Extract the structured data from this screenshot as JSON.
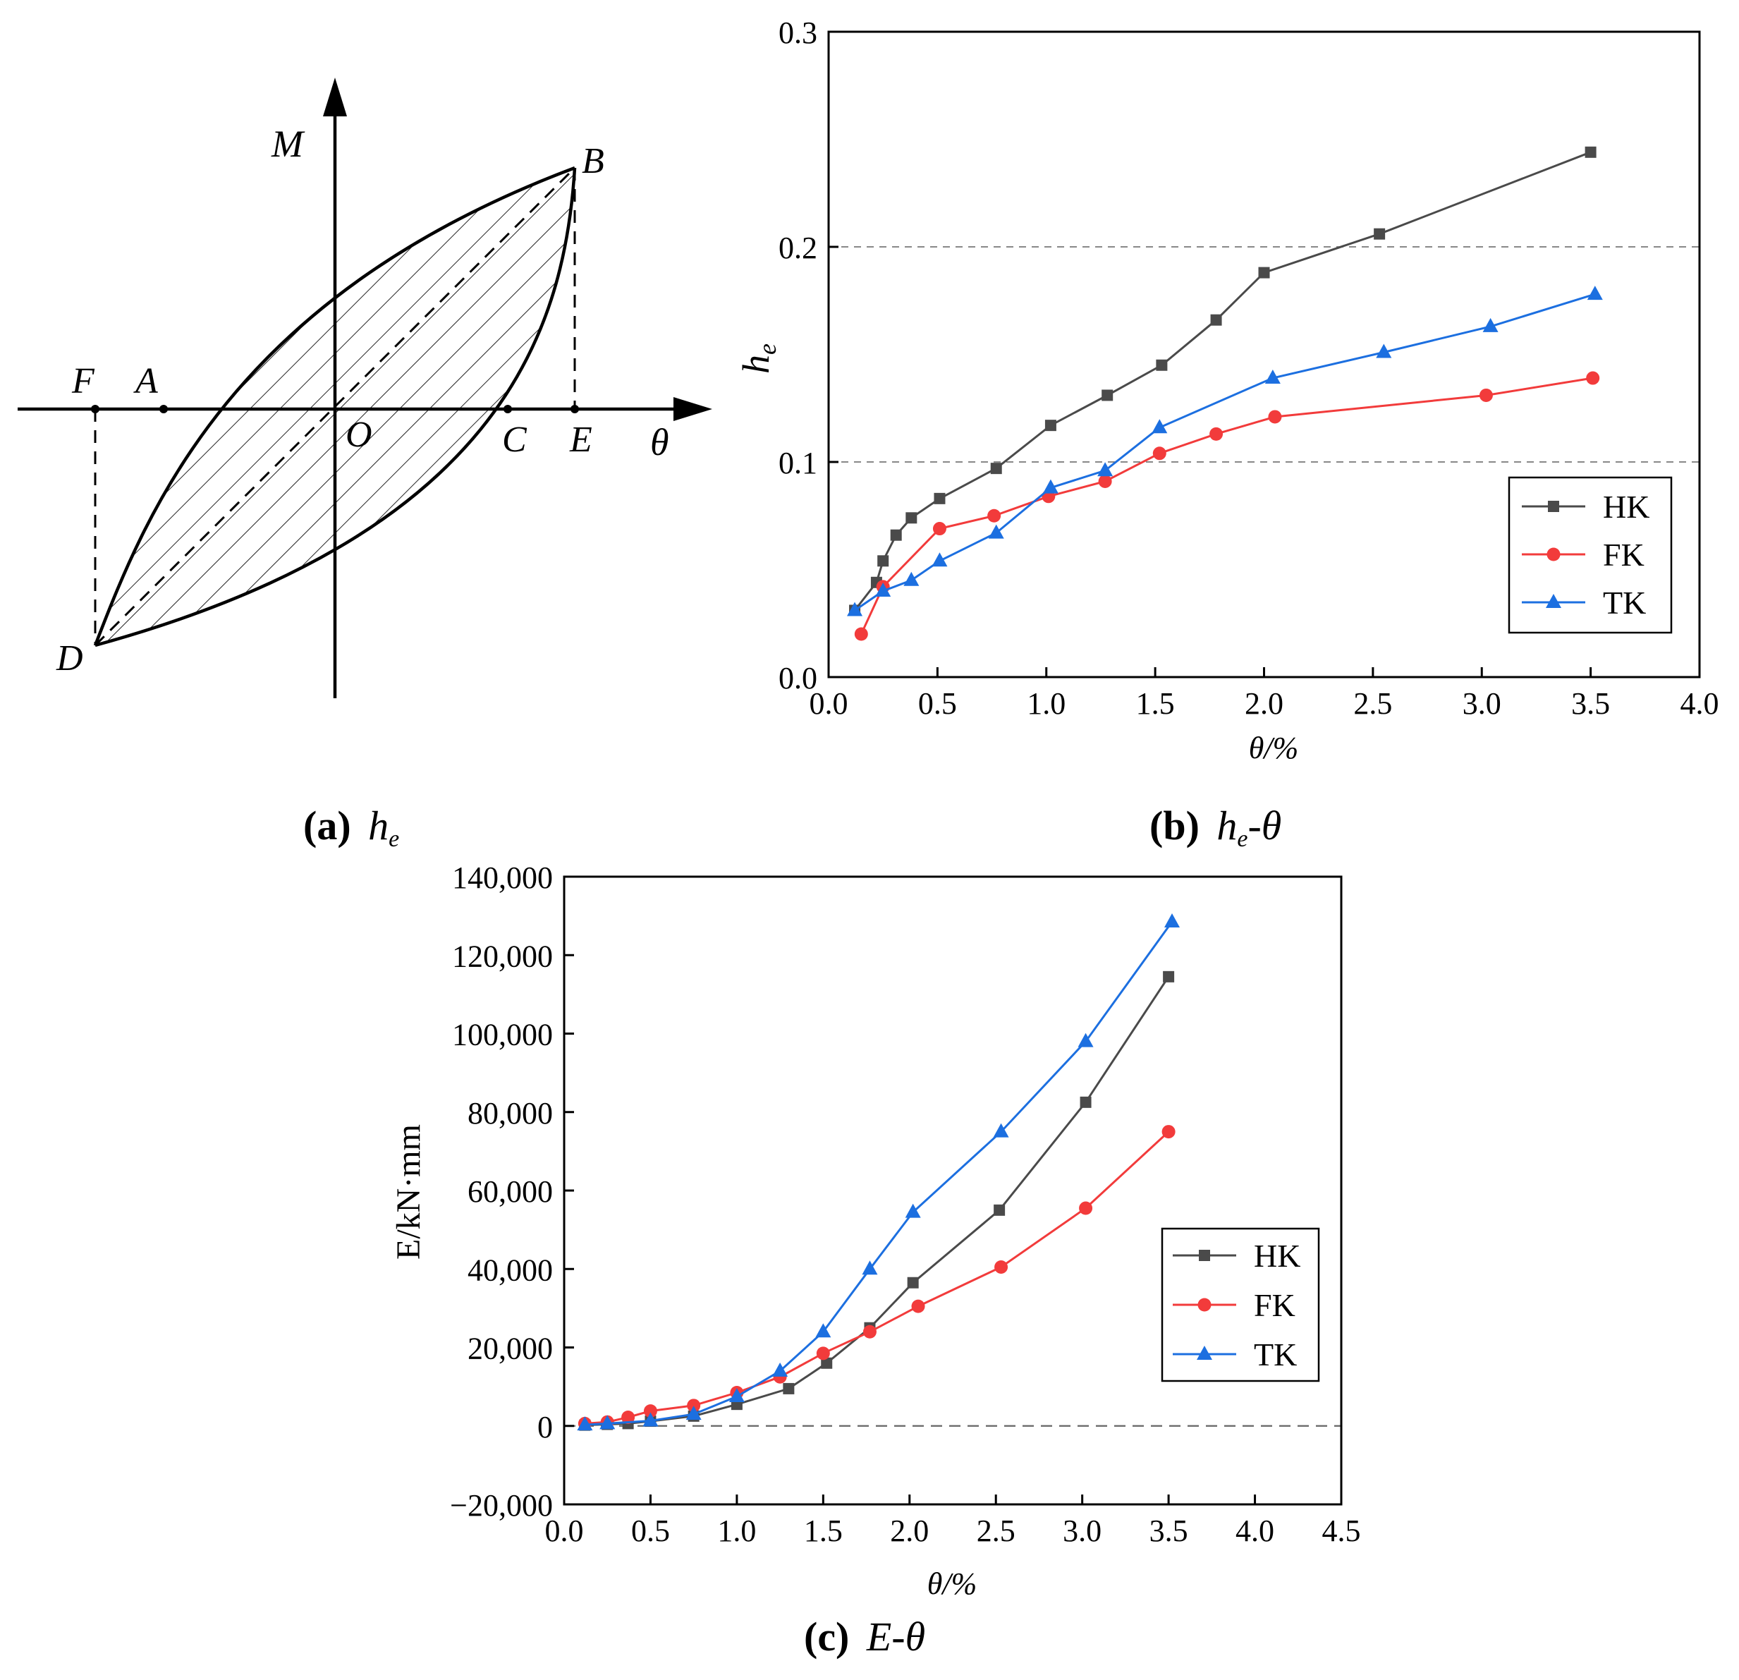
{
  "panel_a": {
    "caption": {
      "letter": "(a)",
      "symbol": "h",
      "subscript": "e"
    },
    "axis_labels": {
      "y": "M",
      "x": "θ"
    },
    "points": {
      "B": "B",
      "A": "A",
      "F": "F",
      "O": "O",
      "C": "C",
      "E": "E",
      "D": "D"
    }
  },
  "panel_b_caption": {
    "letter": "(b)",
    "symbol": "h",
    "subscript": "e",
    "suffix": "-θ"
  },
  "panel_c_caption": {
    "letter": "(c)",
    "text": "E-θ"
  },
  "chart_data": [
    {
      "id": "he-theta",
      "type": "line",
      "xlabel": "θ/%",
      "ylabel": "h",
      "ylabel_sub": "e",
      "xlim": [
        0.0,
        4.0
      ],
      "ylim": [
        0.0,
        0.3
      ],
      "xticks": [
        "0.0",
        "0.5",
        "1.0",
        "1.5",
        "2.0",
        "2.5",
        "3.0",
        "3.5",
        "4.0"
      ],
      "yticks": [
        "0.0",
        "0.1",
        "0.2",
        "0.3"
      ],
      "reference_lines_y": [
        0.1,
        0.2
      ],
      "legend": "bottom-right",
      "series": [
        {
          "name": "HK",
          "color": "#4a4a4a",
          "marker": "square",
          "x": [
            0.12,
            0.22,
            0.25,
            0.31,
            0.38,
            0.51,
            0.77,
            1.02,
            1.28,
            1.53,
            1.78,
            2.0,
            2.53,
            3.5
          ],
          "y": [
            0.031,
            0.044,
            0.054,
            0.066,
            0.074,
            0.083,
            0.097,
            0.117,
            0.131,
            0.145,
            0.166,
            0.188,
            0.206,
            0.244
          ]
        },
        {
          "name": "FK",
          "color": "#f23b3b",
          "marker": "circle",
          "x": [
            0.15,
            0.25,
            0.51,
            0.76,
            1.01,
            1.27,
            1.52,
            1.78,
            2.05,
            3.02,
            3.51
          ],
          "y": [
            0.02,
            0.042,
            0.069,
            0.075,
            0.084,
            0.091,
            0.104,
            0.113,
            0.121,
            0.131,
            0.139
          ]
        },
        {
          "name": "TK",
          "color": "#1c6fe0",
          "marker": "triangle",
          "x": [
            0.12,
            0.25,
            0.38,
            0.51,
            0.77,
            1.02,
            1.27,
            1.52,
            2.04,
            2.55,
            3.04,
            3.52
          ],
          "y": [
            0.031,
            0.04,
            0.045,
            0.054,
            0.067,
            0.088,
            0.096,
            0.116,
            0.139,
            0.151,
            0.163,
            0.178
          ]
        }
      ]
    },
    {
      "id": "E-theta",
      "type": "line",
      "xlabel": "θ/%",
      "ylabel": "E/kN·mm",
      "xlim": [
        0.0,
        4.5
      ],
      "ylim": [
        -20000,
        140000
      ],
      "xticks": [
        "0.0",
        "0.5",
        "1.0",
        "1.5",
        "2.0",
        "2.5",
        "3.0",
        "3.5",
        "4.0",
        "4.5"
      ],
      "yticks": [
        "−20,000",
        "0",
        "20,000",
        "40,000",
        "60,000",
        "80,000",
        "100,000",
        "120,000",
        "140,000"
      ],
      "reference_lines_y": [
        0
      ],
      "legend": "right",
      "series": [
        {
          "name": "HK",
          "color": "#4a4a4a",
          "marker": "square",
          "x": [
            0.12,
            0.25,
            0.37,
            0.5,
            0.75,
            1.0,
            1.3,
            1.52,
            1.77,
            2.02,
            2.52,
            3.02,
            3.5
          ],
          "y": [
            200,
            400,
            600,
            1200,
            2500,
            5500,
            9500,
            16000,
            25000,
            36500,
            55000,
            82500,
            114500
          ]
        },
        {
          "name": "FK",
          "color": "#f23b3b",
          "marker": "circle",
          "x": [
            0.12,
            0.25,
            0.37,
            0.5,
            0.75,
            1.0,
            1.25,
            1.5,
            1.77,
            2.05,
            2.53,
            3.02,
            3.5
          ],
          "y": [
            600,
            1000,
            2200,
            3800,
            5200,
            8500,
            12500,
            18500,
            24000,
            30500,
            40500,
            55500,
            75000
          ]
        },
        {
          "name": "TK",
          "color": "#1c6fe0",
          "marker": "triangle",
          "x": [
            0.12,
            0.25,
            0.5,
            0.75,
            1.0,
            1.25,
            1.5,
            1.77,
            2.02,
            2.53,
            3.02,
            3.52
          ],
          "y": [
            300,
            600,
            1300,
            3000,
            7500,
            14000,
            24000,
            40000,
            54500,
            75000,
            98000,
            128500
          ]
        }
      ]
    }
  ]
}
